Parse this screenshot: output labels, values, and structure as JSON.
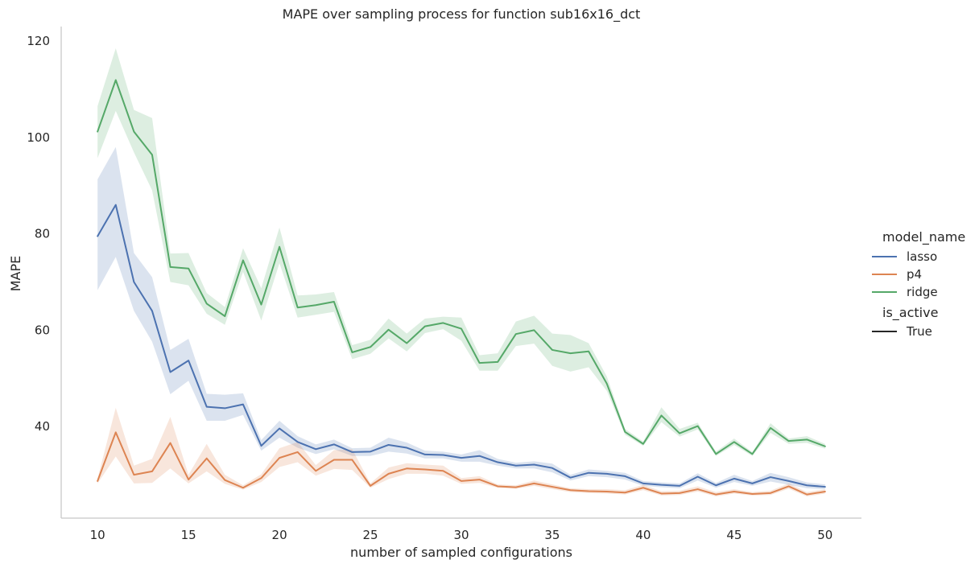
{
  "chart_data": {
    "type": "line",
    "title": "MAPE over sampling process for function sub16x16_dct",
    "xlabel": "number of sampled configurations",
    "ylabel": "MAPE",
    "xlim": [
      8,
      52
    ],
    "ylim": [
      21,
      123
    ],
    "x_ticks": [
      10,
      15,
      20,
      25,
      30,
      35,
      40,
      45,
      50
    ],
    "y_ticks": [
      40,
      60,
      80,
      100,
      120
    ],
    "grid": false,
    "legend": {
      "placement": "right",
      "hue_title": "model_name",
      "style_title": "is_active",
      "style_entries": [
        "True"
      ]
    },
    "x": [
      10,
      11,
      12,
      13,
      14,
      15,
      16,
      17,
      18,
      19,
      20,
      21,
      22,
      23,
      24,
      25,
      26,
      27,
      28,
      29,
      30,
      31,
      32,
      33,
      34,
      35,
      36,
      37,
      38,
      39,
      40,
      41,
      42,
      43,
      44,
      45,
      46,
      47,
      48,
      49,
      50
    ],
    "series": [
      {
        "name": "lasso",
        "color": "#4c72b0",
        "values": [
          79.5,
          86,
          70,
          64,
          51.3,
          53.7,
          44.1,
          43.8,
          44.6,
          36,
          39.6,
          36.8,
          35.3,
          36.3,
          34.7,
          34.8,
          36.2,
          35.6,
          34.2,
          34.1,
          33.5,
          33.9,
          32.6,
          31.9,
          32.1,
          31.4,
          29.4,
          30.4,
          30.2,
          29.7,
          28.2,
          27.9,
          27.7,
          29.6,
          27.8,
          29.2,
          28.2,
          29.5,
          28.7,
          27.8,
          27.5
        ],
        "lower": [
          68.3,
          75.2,
          64,
          57.6,
          46.7,
          49.5,
          41.2,
          41.2,
          42.4,
          35,
          37.7,
          35.6,
          34.3,
          35.3,
          33.9,
          33.9,
          34.8,
          34.4,
          33.4,
          33.4,
          32.7,
          32.7,
          31.9,
          31.3,
          31.3,
          30.5,
          28.8,
          29.7,
          29.5,
          29,
          27.7,
          27.4,
          27.2,
          28.8,
          27.3,
          28.5,
          27.7,
          28.6,
          27.9,
          27.2,
          27
        ],
        "upper": [
          91.3,
          98,
          76,
          71,
          55.9,
          58.2,
          46.8,
          46.6,
          46.9,
          37.2,
          41.2,
          38,
          36.3,
          37.3,
          35.5,
          35.6,
          37.7,
          36.7,
          35,
          34.8,
          34.2,
          35.1,
          33.3,
          32.5,
          32.8,
          32.3,
          30,
          31.1,
          30.8,
          30.4,
          28.7,
          28.4,
          28.2,
          30.3,
          28.3,
          30,
          28.7,
          30.4,
          29.5,
          28.4,
          28
        ]
      },
      {
        "name": "p4",
        "color": "#dd8452",
        "values": [
          28.7,
          38.8,
          30,
          30.7,
          36.6,
          29,
          33.4,
          28.9,
          27.3,
          29.3,
          33.5,
          34.7,
          30.8,
          33.1,
          33.1,
          27.7,
          30.2,
          31.3,
          31.1,
          30.8,
          28.7,
          29,
          27.6,
          27.4,
          28.2,
          27.5,
          26.8,
          26.6,
          26.5,
          26.3,
          27.3,
          26.1,
          26.2,
          27,
          25.9,
          26.5,
          26,
          26.2,
          27.6,
          25.9,
          26.5
        ],
        "lower": [
          28.2,
          33.8,
          28.2,
          28.3,
          31.3,
          28.2,
          30.7,
          28.1,
          26.9,
          28.5,
          31.6,
          32.6,
          29.8,
          31.2,
          31,
          27.3,
          29.1,
          30.2,
          30.2,
          29.8,
          28.1,
          28.3,
          27.3,
          27.1,
          27.7,
          27,
          26.4,
          26.2,
          26.1,
          25.9,
          26.8,
          25.7,
          25.8,
          26.5,
          25.5,
          26.1,
          25.7,
          25.8,
          27.1,
          25.5,
          26.1
        ],
        "upper": [
          29.2,
          43.9,
          31.9,
          33.3,
          42,
          30,
          36.4,
          30,
          27.8,
          30.1,
          35.5,
          36.8,
          32,
          35.1,
          35.3,
          28.2,
          31.5,
          32.4,
          32.1,
          31.9,
          29.3,
          29.7,
          28,
          27.8,
          28.8,
          28,
          27.2,
          27,
          27,
          26.8,
          27.9,
          26.6,
          26.7,
          27.6,
          26.4,
          27,
          26.4,
          26.7,
          28.2,
          26.4,
          27
        ]
      },
      {
        "name": "ridge",
        "color": "#55a868",
        "values": [
          101.2,
          111.9,
          101.2,
          96.4,
          73.1,
          72.8,
          65.5,
          62.9,
          74.5,
          65.3,
          77.3,
          64.7,
          65.2,
          65.9,
          55.4,
          56.5,
          60.1,
          57.3,
          60.8,
          61.5,
          60.3,
          53.2,
          53.4,
          59.2,
          60,
          55.9,
          55.2,
          55.6,
          48.9,
          38.9,
          36.4,
          42.3,
          38.6,
          40.1,
          34.3,
          36.8,
          34.3,
          39.7,
          37,
          37.3,
          35.9
        ],
        "lower": [
          95.7,
          105.5,
          96.9,
          89,
          70,
          69.3,
          63.4,
          61.1,
          72.1,
          62,
          73.9,
          62.6,
          63.2,
          63.8,
          54,
          55.1,
          58.3,
          55.6,
          59.4,
          60.2,
          57.8,
          51.6,
          51.6,
          56.7,
          57.2,
          52.6,
          51.4,
          52.3,
          47.4,
          38.3,
          36,
          40.9,
          37.9,
          39.4,
          33.9,
          36.2,
          33.9,
          38.7,
          36.4,
          36.6,
          35.4
        ],
        "upper": [
          106.5,
          118.5,
          105.7,
          104,
          75.9,
          76,
          67.7,
          64.8,
          77,
          68.7,
          81.3,
          67.2,
          67.4,
          67.9,
          56.9,
          58,
          62.4,
          59.3,
          62.4,
          62.8,
          62.6,
          54.8,
          55.2,
          61.8,
          63,
          59.3,
          59,
          57.3,
          50.4,
          39.5,
          36.9,
          44,
          39.5,
          40.8,
          34.8,
          37.5,
          34.7,
          40.7,
          37.5,
          38,
          36.4
        ]
      }
    ]
  }
}
